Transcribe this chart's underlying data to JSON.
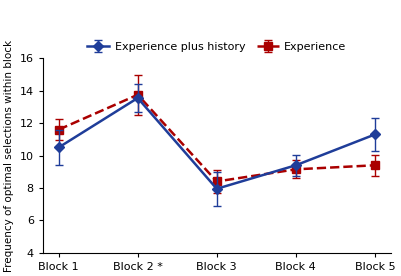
{
  "x_labels": [
    "Block 1",
    "Block 2 *",
    "Block 3",
    "Block 4",
    "Block 5"
  ],
  "series1_name": "Experience plus history",
  "series1_y": [
    10.5,
    13.55,
    7.95,
    9.4,
    11.3
  ],
  "series1_yerr": [
    1.1,
    0.85,
    1.05,
    0.65,
    1.0
  ],
  "series1_color": "#1F3D99",
  "series1_marker": "D",
  "series1_linestyle": "-",
  "series2_name": "Experience",
  "series2_y": [
    11.6,
    13.75,
    8.4,
    9.15,
    9.4
  ],
  "series2_yerr": [
    0.65,
    1.25,
    0.7,
    0.55,
    0.65
  ],
  "series2_color": "#AA0000",
  "series2_marker": "s",
  "series2_linestyle": "--",
  "ylim": [
    4,
    16
  ],
  "yticks": [
    4,
    6,
    8,
    10,
    12,
    14,
    16
  ],
  "ylabel": "Frequency of optimal selections within block",
  "background_color": "#ffffff",
  "linewidth": 1.8,
  "markersize": 5.5,
  "capsize": 3,
  "elinewidth": 1.0,
  "legend_fontsize": 8.0,
  "ylabel_fontsize": 7.5,
  "tick_fontsize": 8.0
}
